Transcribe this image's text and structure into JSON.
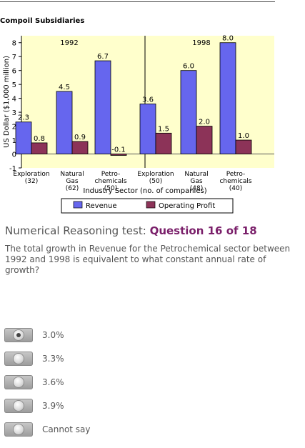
{
  "chart_title": "Compoil Subsidiaries",
  "chart_data": {
    "type": "bar",
    "title": "Compoil Subsidiaries",
    "ylabel": "US Dollar ($1,000 million)",
    "xlabel": "Industry Sector (no. of companies)",
    "ylim": [
      -1,
      8.5
    ],
    "yticks": [
      "-1",
      "0",
      "1",
      "2",
      "3",
      "4",
      "5",
      "6",
      "7",
      "8"
    ],
    "panels": [
      {
        "year": "1992",
        "categories": [
          {
            "lines": [
              "Exploration",
              "(32)"
            ]
          },
          {
            "lines": [
              "Natural",
              "Gas",
              "(62)"
            ]
          },
          {
            "lines": [
              "Petro-",
              "chemicals",
              "(50)"
            ]
          }
        ],
        "revenue": [
          2.3,
          4.5,
          6.7
        ],
        "revenue_labels": [
          "2.3",
          "4.5",
          "6.7"
        ],
        "profit": [
          0.8,
          0.9,
          -0.1
        ],
        "profit_labels": [
          "0.8",
          "0.9",
          "-0.1"
        ]
      },
      {
        "year": "1998",
        "categories": [
          {
            "lines": [
              "Exploration",
              "(50)"
            ]
          },
          {
            "lines": [
              "Natural",
              "Gas",
              "(48)"
            ]
          },
          {
            "lines": [
              "Petro-",
              "chemicals",
              "(40)"
            ]
          }
        ],
        "revenue": [
          3.6,
          6.0,
          8.0
        ],
        "revenue_labels": [
          "3.6",
          "6.0",
          "8.0"
        ],
        "profit": [
          1.5,
          2.0,
          1.0
        ],
        "profit_labels": [
          "1.5",
          "2.0",
          "1.0"
        ]
      }
    ],
    "series": [
      {
        "name": "Revenue",
        "color": "#6666ee"
      },
      {
        "name": "Operating Profit",
        "color": "#8c3358"
      }
    ],
    "plot_background": "#ffffcc",
    "legend_position": "bottom"
  },
  "question": {
    "prefix": "Numerical Reasoning test:",
    "number": "Question 16 of 18",
    "text": "The total growth in Revenue for the Petrochemical sector between 1992 and 1998 is equivalent to what constant annual rate of growth?"
  },
  "options": [
    {
      "label": "3.0%",
      "selected": true
    },
    {
      "label": "3.3%",
      "selected": false
    },
    {
      "label": "3.6%",
      "selected": false
    },
    {
      "label": "3.9%",
      "selected": false
    },
    {
      "label": "Cannot say",
      "selected": false
    }
  ]
}
